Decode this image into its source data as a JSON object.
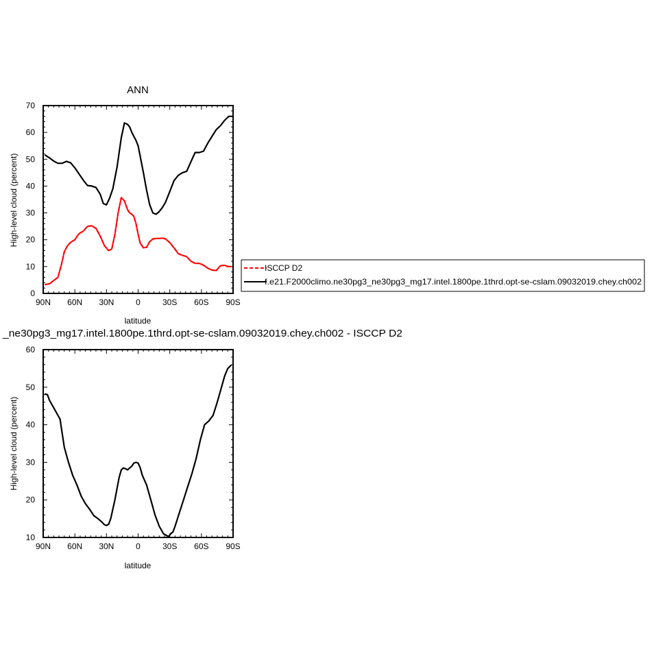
{
  "chart_data": [
    {
      "type": "line",
      "title": "ANN",
      "xlabel": "latitude",
      "ylabel": "High-level cloud (percent)",
      "xlim": [
        90,
        -90
      ],
      "ylim": [
        0,
        70
      ],
      "x_tick_values": [
        90,
        60,
        30,
        0,
        -30,
        -60,
        -90
      ],
      "x_tick_labels": [
        "90N",
        "60N",
        "30N",
        "0",
        "30S",
        "60S",
        "90S"
      ],
      "y_tick_values": [
        0,
        10,
        20,
        30,
        40,
        50,
        60,
        70
      ],
      "y_tick_labels": [
        "0",
        "10",
        "20",
        "30",
        "40",
        "50",
        "60",
        "70"
      ],
      "legend_position": "right",
      "series": [
        {
          "name": "ISCCP D2",
          "color": "#ff0000",
          "dashed": true,
          "x": [
            88,
            84,
            80,
            76,
            73,
            70,
            67,
            64,
            60,
            56,
            52,
            48,
            44,
            40,
            36,
            32,
            28,
            25,
            22,
            19,
            16,
            13,
            10,
            8,
            6,
            4,
            2,
            0,
            -2,
            -5,
            -8,
            -11,
            -14,
            -17,
            -20,
            -23,
            -26,
            -30,
            -34,
            -38,
            -42,
            -46,
            -50,
            -54,
            -58,
            -62,
            -66,
            -70,
            -74,
            -78,
            -82,
            -85,
            -88
          ],
          "y": [
            3.3,
            3.6,
            4.8,
            6.0,
            10.3,
            15.5,
            17.8,
            19.0,
            20.0,
            22.3,
            23.2,
            25.0,
            25.2,
            24.3,
            21.4,
            17.8,
            16.0,
            16.5,
            22.0,
            30.0,
            35.7,
            34.5,
            31.2,
            30.0,
            29.5,
            28.7,
            26.0,
            22.0,
            18.7,
            17.0,
            17.2,
            19.3,
            20.3,
            20.5,
            20.5,
            20.6,
            20.3,
            18.9,
            17.0,
            14.8,
            14.2,
            13.7,
            12.0,
            11.2,
            11.2,
            10.5,
            9.4,
            8.7,
            8.5,
            10.3,
            10.5,
            10.0,
            10.0
          ]
        },
        {
          "name": "f.e21.F2000climo.ne30pg3_ne30pg3_mg17.intel.1800pe.1thrd.opt-se-cslam.09032019.chey.ch002",
          "color": "#000000",
          "dashed": false,
          "x": [
            88,
            84,
            80,
            76,
            72,
            68,
            64,
            60,
            56,
            52,
            48,
            44,
            40,
            36,
            33,
            30,
            27,
            24,
            20,
            16,
            13,
            10,
            8,
            6,
            4,
            2,
            0,
            -2,
            -5,
            -8,
            -11,
            -14,
            -17,
            -20,
            -23,
            -26,
            -30,
            -34,
            -38,
            -42,
            -46,
            -50,
            -54,
            -58,
            -62,
            -66,
            -70,
            -74,
            -78,
            -82,
            -86,
            -89
          ],
          "y": [
            51.5,
            50.5,
            49.3,
            48.5,
            48.5,
            49.2,
            48.7,
            46.8,
            44.5,
            42.2,
            40.2,
            40.0,
            39.5,
            37.0,
            33.5,
            33.0,
            35.5,
            39.0,
            47.0,
            58.0,
            63.5,
            63.0,
            62.0,
            60.0,
            58.5,
            57.0,
            55.0,
            51.0,
            45.0,
            38.5,
            33.0,
            30.0,
            29.5,
            30.5,
            32.0,
            34.0,
            38.0,
            42.0,
            44.0,
            45.0,
            45.5,
            49.0,
            52.5,
            52.5,
            53.0,
            56.0,
            58.5,
            61.0,
            62.5,
            64.5,
            66.0,
            66.0
          ]
        }
      ]
    },
    {
      "type": "line",
      "title": "_ne30pg3_mg17.intel.1800pe.1thrd.opt-se-cslam.09032019.chey.ch002 - ISCCP D2",
      "xlabel": "latitude",
      "ylabel": "High-level cloud (percent)",
      "xlim": [
        90,
        -90
      ],
      "ylim": [
        10,
        60
      ],
      "x_tick_values": [
        90,
        60,
        30,
        0,
        -30,
        -60,
        -90
      ],
      "x_tick_labels": [
        "90N",
        "60N",
        "30N",
        "0",
        "30S",
        "60S",
        "90S"
      ],
      "y_tick_values": [
        10,
        20,
        30,
        40,
        50,
        60
      ],
      "y_tick_labels": [
        "10",
        "20",
        "30",
        "40",
        "50",
        "60"
      ],
      "series": [
        {
          "color": "#000000",
          "dashed": false,
          "x": [
            88,
            86,
            84,
            80,
            76,
            74,
            70,
            66,
            62,
            58,
            54,
            50,
            46,
            42,
            38,
            34,
            32,
            30,
            28,
            26,
            22,
            18,
            16,
            14,
            12,
            10,
            8,
            6,
            4,
            2,
            0,
            -2,
            -4,
            -8,
            -12,
            -16,
            -20,
            -24,
            -27,
            -29,
            -31,
            -33,
            -35,
            -39,
            -43,
            -47,
            -51,
            -55,
            -59,
            -63,
            -67,
            -71,
            -75,
            -79,
            -82,
            -85,
            -88
          ],
          "y": [
            48.2,
            48.0,
            46.5,
            44.5,
            42.5,
            41.5,
            34.0,
            30.0,
            26.5,
            24.0,
            21.0,
            19.0,
            17.5,
            15.8,
            15.0,
            14.0,
            13.4,
            13.2,
            13.5,
            15.0,
            20.0,
            26.0,
            28.0,
            28.5,
            28.3,
            28.0,
            28.5,
            29.0,
            29.8,
            30.0,
            29.8,
            28.5,
            26.5,
            24.0,
            20.0,
            16.0,
            13.0,
            11.0,
            10.5,
            10.3,
            11.0,
            11.5,
            13.0,
            16.5,
            20.0,
            23.5,
            27.0,
            31.0,
            36.0,
            40.0,
            41.0,
            42.5,
            46.0,
            50.0,
            53.0,
            55.0,
            55.8
          ]
        }
      ]
    }
  ]
}
